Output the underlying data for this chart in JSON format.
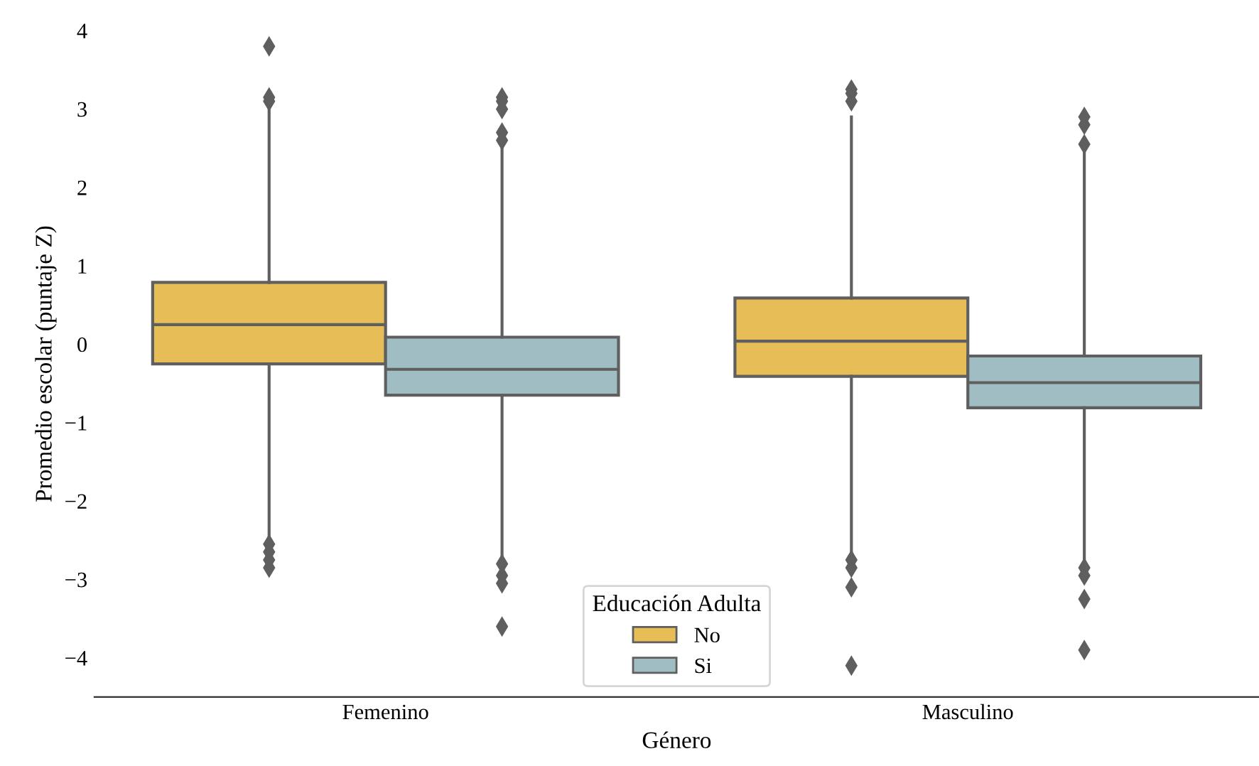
{
  "chart_data": {
    "type": "box",
    "xlabel": "Género",
    "ylabel": "Promedio escolar (puntaje Z)",
    "legend_title": "Educación Adulta",
    "categories": [
      "Femenino",
      "Masculino"
    ],
    "series": [
      {
        "name": "No",
        "color": "#e6bd57",
        "boxes": [
          {
            "low": -2.45,
            "q1": -0.25,
            "median": 0.25,
            "q3": 0.79,
            "high": 3.0,
            "outliers": [
              3.8,
              3.15,
              3.1,
              -2.55,
              -2.65,
              -2.75,
              -2.85
            ]
          },
          {
            "low": -2.65,
            "q1": -0.41,
            "median": 0.04,
            "q3": 0.59,
            "high": 2.9,
            "outliers": [
              3.25,
              3.2,
              3.1,
              -2.75,
              -2.85,
              -3.1,
              -4.1
            ]
          }
        ]
      },
      {
        "name": "Si",
        "color": "#9fbdc3",
        "boxes": [
          {
            "low": -2.7,
            "q1": -0.65,
            "median": -0.32,
            "q3": 0.09,
            "high": 2.5,
            "outliers": [
              3.15,
              3.1,
              3.0,
              2.7,
              2.6,
              -2.8,
              -2.95,
              -3.05,
              -3.6
            ]
          },
          {
            "low": -2.8,
            "q1": -0.81,
            "median": -0.49,
            "q3": -0.15,
            "high": 2.45,
            "outliers": [
              2.9,
              2.8,
              2.55,
              -2.85,
              -2.95,
              -3.25,
              -3.9
            ]
          }
        ]
      }
    ],
    "ylim": [
      -4.5,
      4
    ],
    "yticks": [
      {
        "value": -4,
        "label": "−4"
      },
      {
        "value": -3,
        "label": "−3"
      },
      {
        "value": -2,
        "label": "−2"
      },
      {
        "value": -1,
        "label": "−1"
      },
      0,
      1,
      2,
      3,
      4
    ],
    "grid": false,
    "legend": "bottom"
  }
}
